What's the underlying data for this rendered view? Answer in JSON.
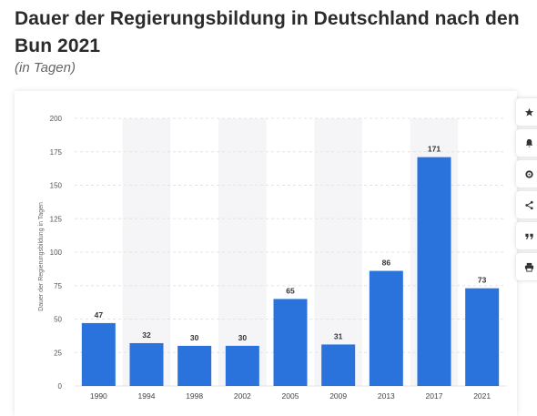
{
  "header": {
    "title": "Dauer der Regierungsbildung in Deutschland nach den Bun 2021",
    "subtitle": "(in Tagen)"
  },
  "colors": {
    "bar": "#2a73dd",
    "band": "#f5f5f7",
    "grid": "#e3e3e3",
    "text": "#2b2b2b"
  },
  "toolbar": {
    "icons": [
      "star-icon",
      "bell-icon",
      "gear-icon",
      "share-icon",
      "quote-icon",
      "print-icon"
    ]
  },
  "chart_data": {
    "type": "bar",
    "categories": [
      "1990",
      "1994",
      "1998",
      "2002",
      "2005",
      "2009",
      "2013",
      "2017",
      "2021"
    ],
    "values": [
      47,
      32,
      30,
      30,
      65,
      31,
      86,
      171,
      73
    ],
    "data_labels": [
      "47",
      "32",
      "30",
      "30",
      "65",
      "31",
      "86",
      "171",
      "73"
    ],
    "ylabel": "Dauer der Regierungsbildung in Tagen",
    "xlabel": "",
    "ylim": [
      0,
      200
    ],
    "yticks": [
      "0",
      "25",
      "50",
      "75",
      "100",
      "125",
      "150",
      "175",
      "200"
    ],
    "grid": true,
    "alternating_bands": true
  }
}
